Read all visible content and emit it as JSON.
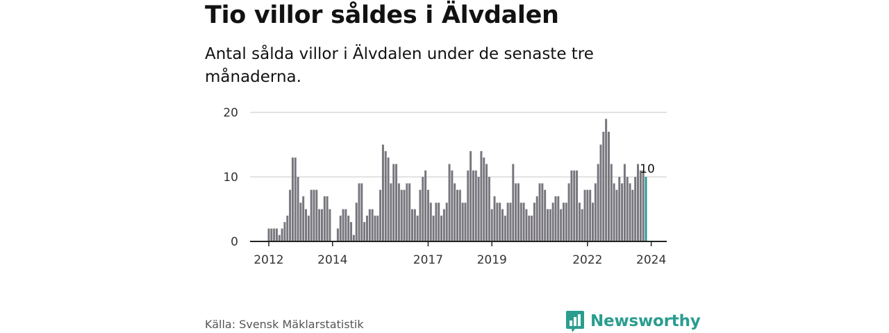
{
  "title": "Tio villor såldes i Älvdalen",
  "subtitle": "Antal sålda villor i Älvdalen under de senaste tre månaderna.",
  "source": "Källa: Svensk Mäklarstatistik",
  "brand": {
    "name": "Newsworthy",
    "icon": "bar-chart-logo-icon",
    "color": "#2a9d8f"
  },
  "chart_data": {
    "type": "bar",
    "title": "Tio villor såldes i Älvdalen",
    "xlabel": "",
    "ylabel": "",
    "ylim": [
      0,
      20
    ],
    "yticks": [
      0,
      10,
      20
    ],
    "xticks": [
      "2012",
      "2014",
      "2017",
      "2019",
      "2022",
      "2024"
    ],
    "grid": true,
    "bar_color": "#78767d",
    "highlight_color": "#2a9d8f",
    "highlight_label": "10",
    "start": "2012-01",
    "end": "2024-01",
    "values": [
      2,
      2,
      2,
      2,
      1,
      2,
      3,
      4,
      8,
      13,
      13,
      10,
      6,
      7,
      5,
      4,
      8,
      8,
      8,
      5,
      5,
      7,
      7,
      5,
      0,
      0,
      2,
      4,
      5,
      5,
      4,
      3,
      1,
      6,
      9,
      9,
      3,
      4,
      5,
      5,
      4,
      4,
      8,
      15,
      14,
      13,
      9,
      12,
      12,
      9,
      8,
      8,
      9,
      9,
      5,
      5,
      4,
      8,
      10,
      11,
      8,
      6,
      4,
      6,
      6,
      4,
      5,
      6,
      12,
      11,
      9,
      8,
      8,
      6,
      6,
      11,
      14,
      11,
      11,
      10,
      14,
      13,
      12,
      10,
      5,
      7,
      6,
      6,
      5,
      4,
      6,
      6,
      12,
      9,
      9,
      6,
      6,
      5,
      4,
      4,
      6,
      7,
      9,
      9,
      8,
      5,
      5,
      6,
      7,
      7,
      5,
      6,
      6,
      9,
      11,
      11,
      11,
      6,
      5,
      8,
      8,
      8,
      6,
      9,
      12,
      15,
      17,
      19,
      17,
      12,
      9,
      8,
      10,
      9,
      12,
      10,
      9,
      8,
      10,
      12,
      11,
      11,
      10
    ]
  }
}
